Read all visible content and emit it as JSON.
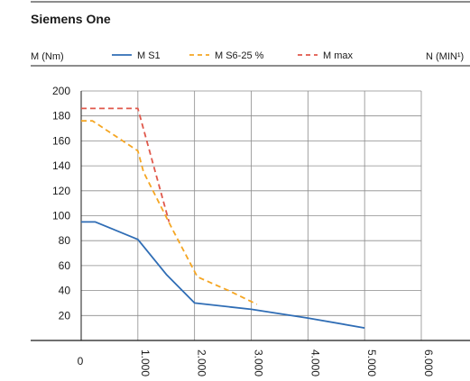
{
  "chart_data": {
    "type": "line",
    "title": "Siemens One",
    "ylabel": "M (Nm)",
    "xlabel": "N (MIN¹)",
    "xlim": [
      0,
      6000
    ],
    "ylim": [
      0,
      200
    ],
    "x_ticks": [
      "0",
      "1.000",
      "2.000",
      "3.000",
      "4.000",
      "5.000",
      "6.000"
    ],
    "y_ticks": [
      "20",
      "40",
      "60",
      "80",
      "100",
      "120",
      "140",
      "160",
      "180",
      "200"
    ],
    "grid": true,
    "legend_position": "top",
    "series": [
      {
        "name": "M S1",
        "color": "#2f6db5",
        "dash": "solid",
        "x": [
          0,
          250,
          1000,
          1500,
          2000,
          3000,
          4000,
          5000
        ],
        "y": [
          95,
          95,
          81,
          53,
          30,
          25,
          18,
          10
        ]
      },
      {
        "name": "M S6-25 %",
        "color": "#f5a623",
        "dash": "dashed",
        "x": [
          0,
          200,
          1000,
          1100,
          1600,
          2050,
          2600,
          3100
        ],
        "y": [
          176,
          176,
          152,
          135,
          90,
          51,
          40,
          29
        ]
      },
      {
        "name": "M max",
        "color": "#e0584b",
        "dash": "dashed",
        "x": [
          0,
          1000,
          1550
        ],
        "y": [
          186,
          186,
          95
        ]
      }
    ]
  }
}
